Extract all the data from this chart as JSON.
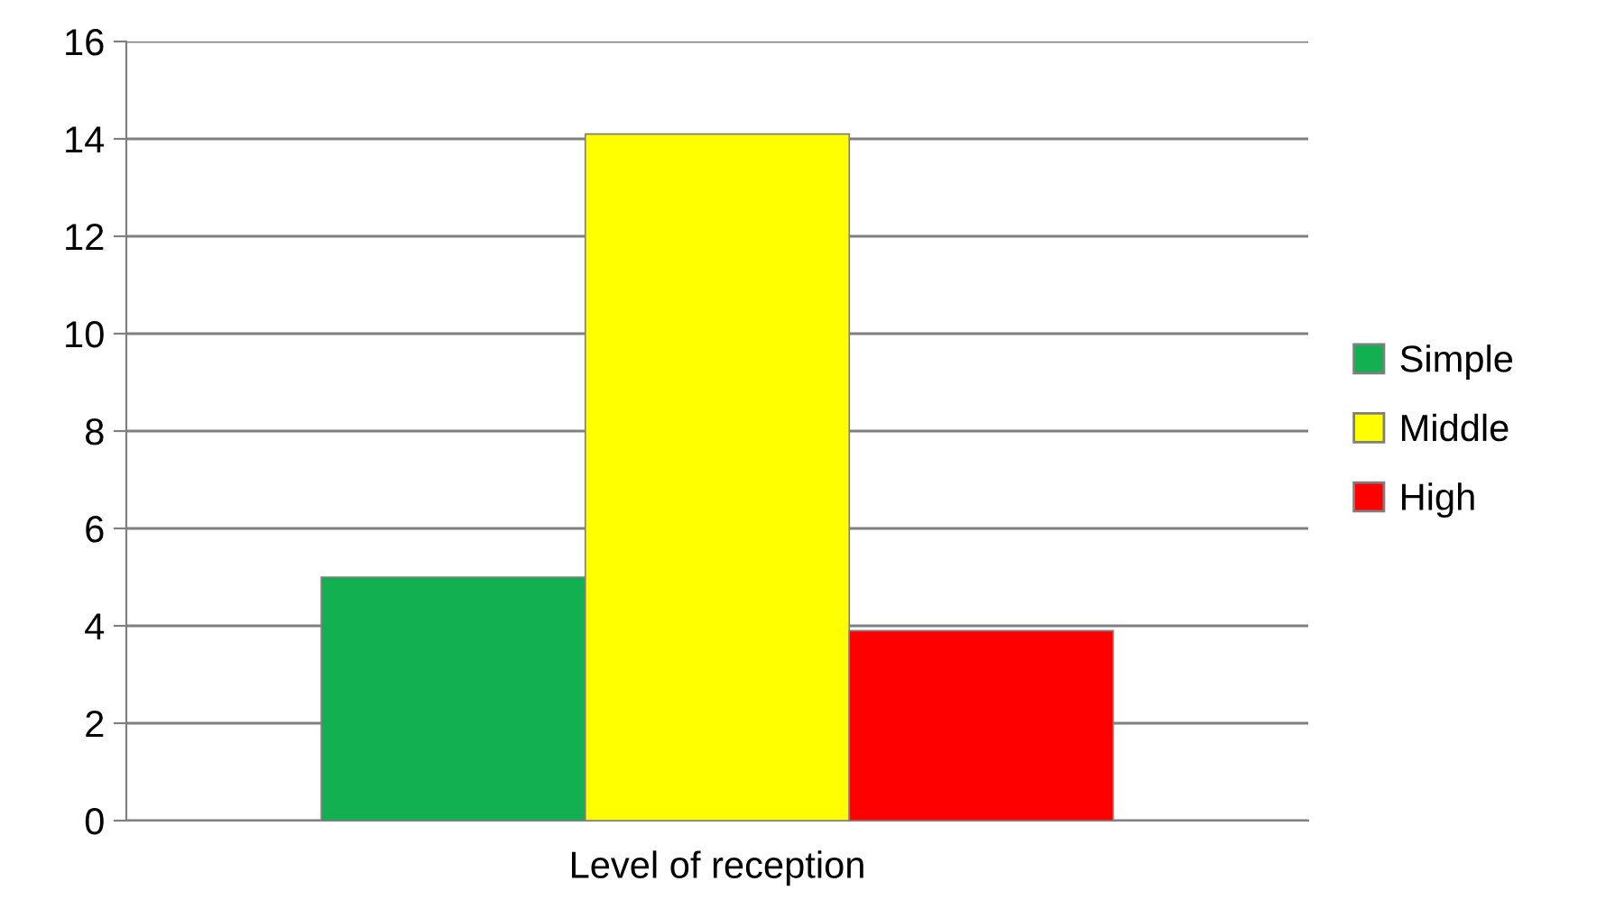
{
  "chart_data": {
    "type": "bar",
    "categories": [
      "Level of reception"
    ],
    "series": [
      {
        "name": "Simple",
        "color": "#12b050",
        "values": [
          5
        ]
      },
      {
        "name": "Middle",
        "color": "#ffff00",
        "values": [
          14.1
        ]
      },
      {
        "name": "High",
        "color": "#ff0000",
        "values": [
          3.9
        ]
      }
    ],
    "ylim": [
      0,
      16
    ],
    "yticks": [
      0,
      2,
      4,
      6,
      8,
      10,
      12,
      14,
      16
    ],
    "grid": "y",
    "legend": "right"
  }
}
